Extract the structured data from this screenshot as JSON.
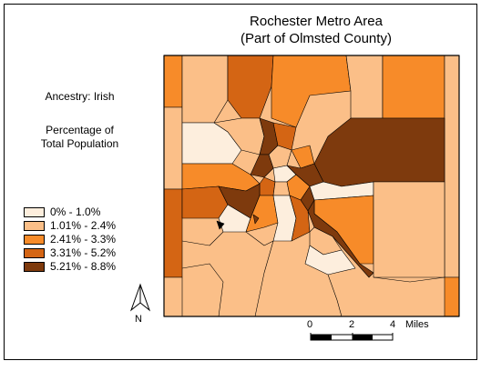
{
  "title": {
    "line1": "Rochester Metro Area",
    "line2": "(Part of Olmsted County)"
  },
  "subtitle": "Ancestry: Irish",
  "measure": {
    "line1": "Percentage of",
    "line2": "Total Population"
  },
  "legend": [
    {
      "label": "0% - 1.0%",
      "color": "#fdeedd"
    },
    {
      "label": "1.01% - 2.4%",
      "color": "#fbbf88"
    },
    {
      "label": "2.41% - 3.3%",
      "color": "#f78b29"
    },
    {
      "label": "3.31% - 5.2%",
      "color": "#d46514"
    },
    {
      "label": "5.21% - 8.8%",
      "color": "#7e3a0d"
    }
  ],
  "north_arrow": {
    "letter": "N",
    "icon": "north-arrow-icon"
  },
  "scale_bar": {
    "ticks": [
      "0",
      "2",
      "4"
    ],
    "unit": "Miles"
  }
}
